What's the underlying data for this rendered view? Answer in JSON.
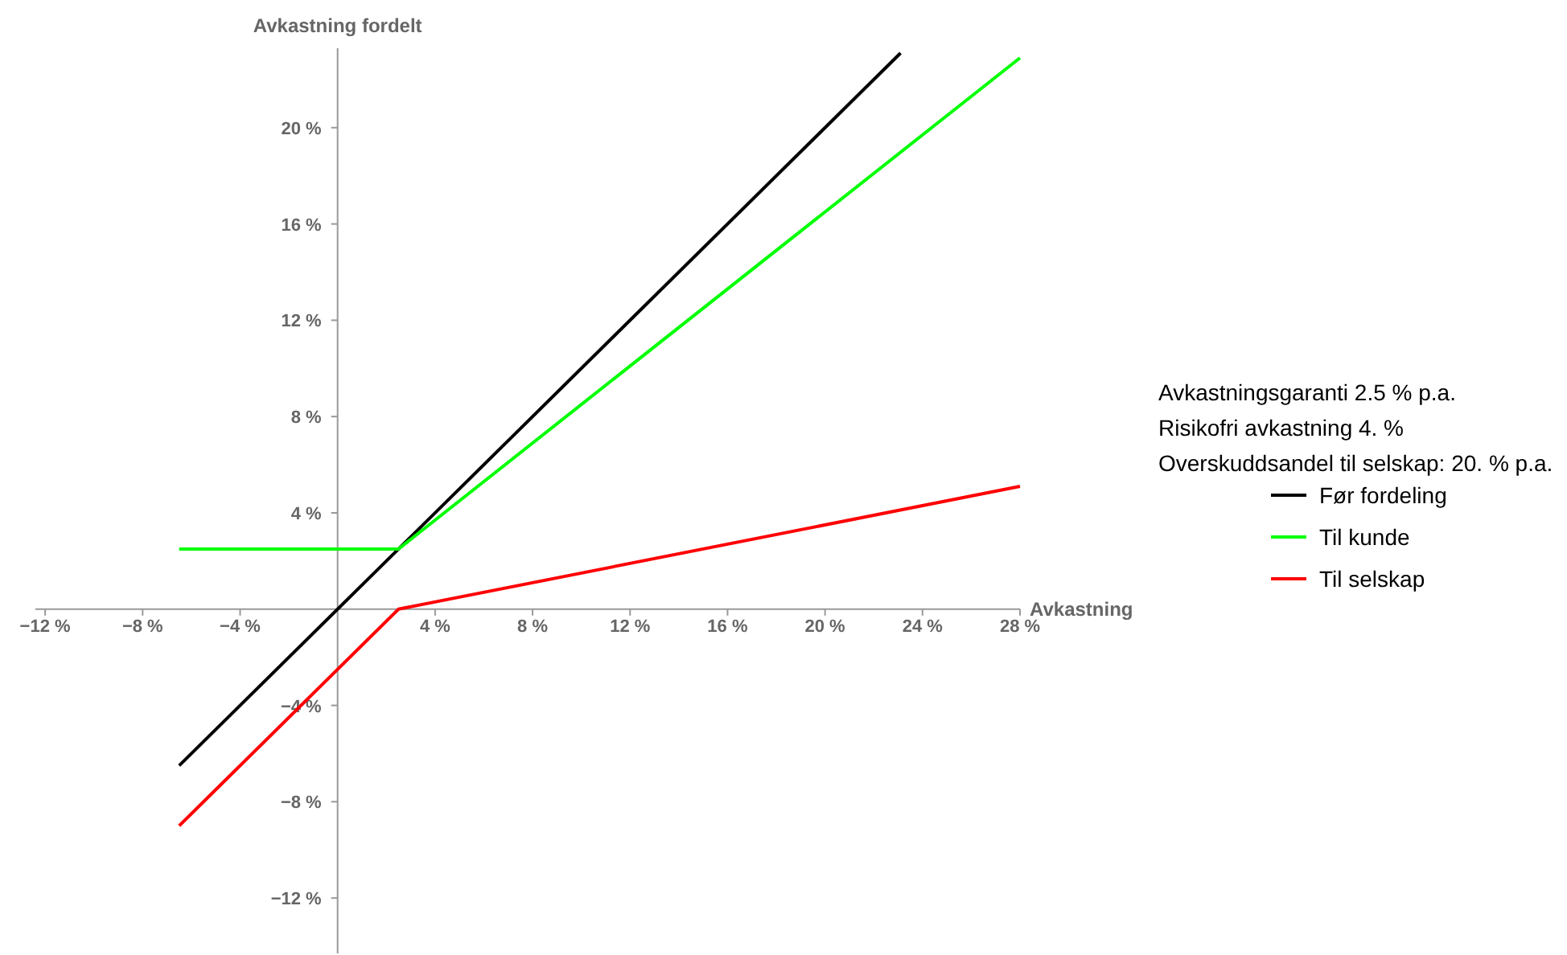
{
  "chart_data": {
    "type": "line",
    "xlabel": "Avkastning",
    "ylabel": "Avkastning fordelt",
    "series": [
      {
        "name": "Før fordeling",
        "color": "#000000",
        "x": [
          -6.5,
          23.1
        ],
        "values": [
          -6.5,
          23.1
        ]
      },
      {
        "name": "Til kunde",
        "color": "#00ff00",
        "x": [
          -6.5,
          2.5,
          28
        ],
        "values": [
          2.5,
          2.5,
          22.9
        ]
      },
      {
        "name": "Til selskap",
        "color": "#ff0000",
        "x": [
          -6.5,
          2.5,
          28
        ],
        "values": [
          -9,
          0,
          5.1
        ]
      }
    ],
    "xlim": [
      -12.4,
      28
    ],
    "ylim": [
      -14.3,
      23.3
    ],
    "xticks": [
      {
        "value": -12,
        "label": "−12 %"
      },
      {
        "value": -8,
        "label": "−8 %"
      },
      {
        "value": -4,
        "label": "−4 %"
      },
      {
        "value": 4,
        "label": "4 %"
      },
      {
        "value": 8,
        "label": "8 %"
      },
      {
        "value": 12,
        "label": "12 %"
      },
      {
        "value": 16,
        "label": "16 %"
      },
      {
        "value": 20,
        "label": "20 %"
      },
      {
        "value": 24,
        "label": "24 %"
      },
      {
        "value": 28,
        "label": "28 %"
      }
    ],
    "yticks": [
      {
        "value": -12,
        "label": "−12 %"
      },
      {
        "value": -8,
        "label": "−8 %"
      },
      {
        "value": -4,
        "label": "−4 %"
      },
      {
        "value": 4,
        "label": "4 %"
      },
      {
        "value": 8,
        "label": "8 %"
      },
      {
        "value": 12,
        "label": "12 %"
      },
      {
        "value": 16,
        "label": "16 %"
      },
      {
        "value": 20,
        "label": "20 %"
      }
    ],
    "annotations": [
      "Avkastningsgaranti 2.5 % p.a.",
      "Risikofri avkastning 4. %",
      "Overskuddsandel til selskap: 20. % p.a."
    ],
    "legend": "right",
    "grid": false,
    "marker": "none",
    "line_style": "solid"
  }
}
